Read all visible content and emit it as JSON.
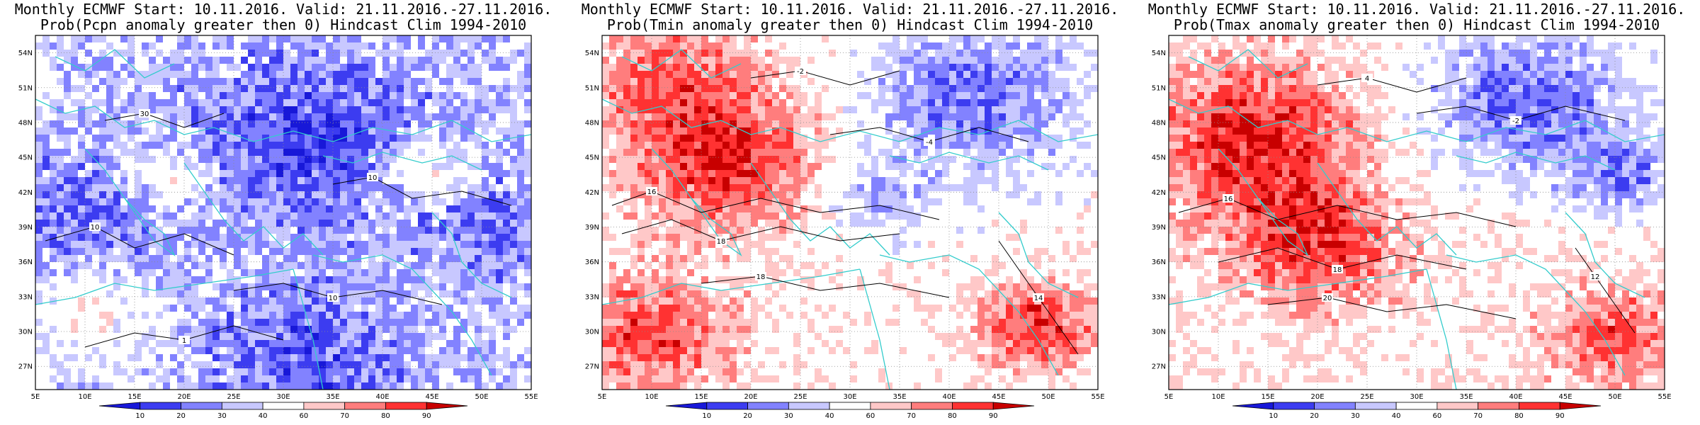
{
  "panels": [
    {
      "title_line1": "Monthly ECMWF Start: 10.11.2016. Valid: 21.11.2016.-27.11.2016.",
      "title_line2": "Prob(Pcpn anomaly greater then 0) Hindcast Clim 1994-2010",
      "field": "precipitation"
    },
    {
      "title_line1": "Monthly ECMWF Start: 10.11.2016. Valid: 21.11.2016.-27.11.2016.",
      "title_line2": "Prob(Tmin anomaly greater then 0) Hindcast Clim 1994-2010",
      "field": "tmin"
    },
    {
      "title_line1": "Monthly ECMWF Start: 10.11.2016. Valid: 21.11.2016.-27.11.2016.",
      "title_line2": "Prob(Tmax anomaly greater then 0) Hindcast Clim 1994-2010",
      "field": "tmax"
    }
  ],
  "map": {
    "lon_labels": [
      "5E",
      "10E",
      "15E",
      "20E",
      "25E",
      "30E",
      "35E",
      "40E",
      "45E",
      "50E",
      "55E"
    ],
    "lat_labels": [
      "54N",
      "51N",
      "48N",
      "45N",
      "42N",
      "39N",
      "36N",
      "33N",
      "30N",
      "27N"
    ],
    "lon_range": [
      5,
      55
    ],
    "lat_range": [
      25,
      55.5
    ]
  },
  "colorbar": {
    "ticks": [
      "10",
      "20",
      "30",
      "40",
      "60",
      "70",
      "80",
      "90"
    ],
    "colors": [
      "#1818d8",
      "#3c3cf0",
      "#8282ff",
      "#c8c8ff",
      "#ffffff",
      "#ffc8c8",
      "#ff7d7d",
      "#ff3232",
      "#c80000"
    ]
  },
  "colors": {
    "coast": "#33cccc",
    "contour": "#000000"
  }
}
